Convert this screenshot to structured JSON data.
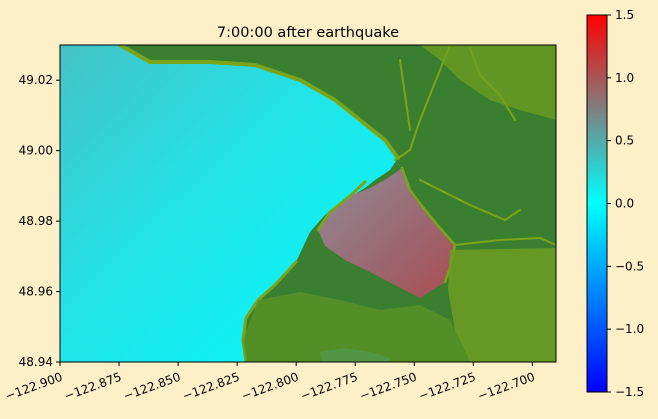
{
  "chart_data": {
    "type": "heatmap",
    "title": "7:00:00 after earthquake",
    "xlabel": "",
    "ylabel": "",
    "xlim": [
      -122.9,
      -122.69
    ],
    "ylim": [
      48.94,
      49.03
    ],
    "x_ticks": [
      -122.9,
      -122.875,
      -122.85,
      -122.825,
      -122.8,
      -122.775,
      -122.75,
      -122.725,
      -122.7
    ],
    "x_tick_labels": [
      "−122.900",
      "−122.875",
      "−122.850",
      "−122.825",
      "−122.800",
      "−122.775",
      "−122.750",
      "−122.725",
      "−122.700"
    ],
    "y_ticks": [
      48.94,
      48.96,
      48.98,
      49.0,
      49.02
    ],
    "y_tick_labels": [
      "48.94",
      "48.96",
      "48.98",
      "49.00",
      "49.02"
    ],
    "colorbar": {
      "range": [
        -1.5,
        1.5
      ],
      "ticks": [
        -1.5,
        -1.0,
        -0.5,
        0.0,
        0.5,
        1.0,
        1.5
      ],
      "tick_labels": [
        "−1.5",
        "−1.0",
        "−0.5",
        "0.0",
        "0.5",
        "1.0",
        "1.5"
      ],
      "colors": [
        "#0000ff",
        "#00ffff",
        "#ff0000"
      ]
    },
    "land_color": "#3a7f2f",
    "land_highlight_color": "#7aa51a",
    "water_colors": {
      "open_water_low": "#00f5f5",
      "open_water_high": "#40c0c8",
      "inundated_high": "#a85050",
      "inundated_mid": "#8a8a90"
    },
    "grid": false
  }
}
